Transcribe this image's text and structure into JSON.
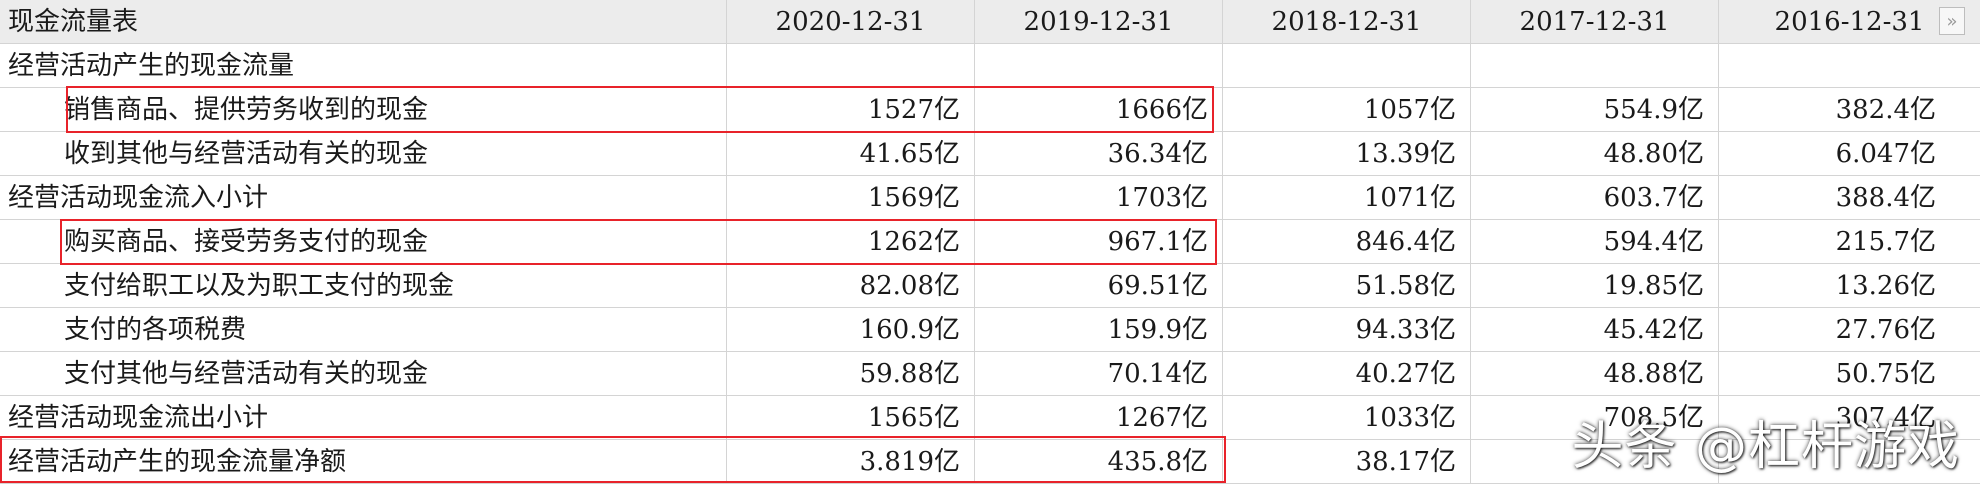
{
  "header": {
    "title": "现金流量表",
    "columns": [
      "2020-12-31",
      "2019-12-31",
      "2018-12-31",
      "2017-12-31",
      "2016-12-31"
    ],
    "expand_glyph": "»"
  },
  "rows": [
    {
      "label": "经营活动产生的现金流量",
      "values": [
        "",
        "",
        "",
        "",
        ""
      ]
    },
    {
      "label": "销售商品、提供劳务收到的现金",
      "values": [
        "1527亿",
        "1666亿",
        "1057亿",
        "554.9亿",
        "382.4亿"
      ]
    },
    {
      "label": "收到其他与经营活动有关的现金",
      "values": [
        "41.65亿",
        "36.34亿",
        "13.39亿",
        "48.80亿",
        "6.047亿"
      ]
    },
    {
      "label": "经营活动现金流入小计",
      "values": [
        "1569亿",
        "1703亿",
        "1071亿",
        "603.7亿",
        "388.4亿"
      ]
    },
    {
      "label": "购买商品、接受劳务支付的现金",
      "values": [
        "1262亿",
        "967.1亿",
        "846.4亿",
        "594.4亿",
        "215.7亿"
      ]
    },
    {
      "label": "支付给职工以及为职工支付的现金",
      "values": [
        "82.08亿",
        "69.51亿",
        "51.58亿",
        "19.85亿",
        "13.26亿"
      ]
    },
    {
      "label": "支付的各项税费",
      "values": [
        "160.9亿",
        "159.9亿",
        "94.33亿",
        "45.42亿",
        "27.76亿"
      ]
    },
    {
      "label": "支付其他与经营活动有关的现金",
      "values": [
        "59.88亿",
        "70.14亿",
        "40.27亿",
        "48.88亿",
        "50.75亿"
      ]
    },
    {
      "label": "经营活动现金流出小计",
      "values": [
        "1565亿",
        "1267亿",
        "1033亿",
        "708.5亿",
        "307.4亿"
      ]
    },
    {
      "label": "经营活动产生的现金流量净额",
      "values": [
        "3.819亿",
        "435.8亿",
        "38.17亿",
        "",
        ""
      ]
    }
  ],
  "watermark": {
    "text": "头条 @杠杆游戏"
  },
  "colors": {
    "highlight": "#e8232a",
    "header_bg": "#ececec",
    "grid": "#d4d4d4"
  }
}
